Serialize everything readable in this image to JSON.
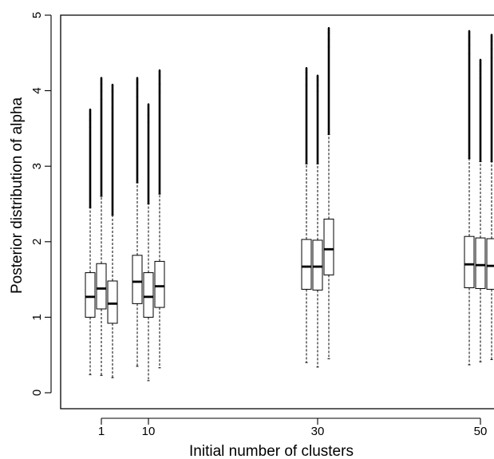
{
  "chart_data": {
    "type": "boxplot",
    "title": "",
    "xlabel": "Initial number of clusters",
    "ylabel": "Posterior distribution of alpha",
    "ylim": [
      0,
      5
    ],
    "yticks": [
      0,
      1,
      2,
      3,
      4,
      5
    ],
    "xticks": [
      1,
      10,
      30,
      50
    ],
    "groups": [
      {
        "x": 1,
        "boxes": [
          {
            "whisker_low": 0.24,
            "q1": 1.0,
            "median": 1.27,
            "q3": 1.59,
            "whisker_high": 2.45,
            "outlier_max": 3.75
          },
          {
            "whisker_low": 0.23,
            "q1": 1.11,
            "median": 1.38,
            "q3": 1.71,
            "whisker_high": 2.6,
            "outlier_max": 4.17
          },
          {
            "whisker_low": 0.2,
            "q1": 0.92,
            "median": 1.18,
            "q3": 1.48,
            "whisker_high": 2.35,
            "outlier_max": 4.08
          }
        ]
      },
      {
        "x": 10,
        "boxes": [
          {
            "whisker_low": 0.35,
            "q1": 1.18,
            "median": 1.47,
            "q3": 1.82,
            "whisker_high": 2.78,
            "outlier_max": 4.17
          },
          {
            "whisker_low": 0.16,
            "q1": 1.0,
            "median": 1.27,
            "q3": 1.59,
            "whisker_high": 2.5,
            "outlier_max": 3.82
          },
          {
            "whisker_low": 0.33,
            "q1": 1.13,
            "median": 1.41,
            "q3": 1.74,
            "whisker_high": 2.63,
            "outlier_max": 4.27
          }
        ]
      },
      {
        "x": 30,
        "boxes": [
          {
            "whisker_low": 0.4,
            "q1": 1.37,
            "median": 1.67,
            "q3": 2.03,
            "whisker_high": 3.03,
            "outlier_max": 4.3
          },
          {
            "whisker_low": 0.34,
            "q1": 1.36,
            "median": 1.67,
            "q3": 2.02,
            "whisker_high": 3.03,
            "outlier_max": 4.2
          },
          {
            "whisker_low": 0.45,
            "q1": 1.56,
            "median": 1.9,
            "q3": 2.3,
            "whisker_high": 3.42,
            "outlier_max": 4.83
          }
        ]
      },
      {
        "x": 50,
        "boxes": [
          {
            "whisker_low": 0.37,
            "q1": 1.39,
            "median": 1.7,
            "q3": 2.07,
            "whisker_high": 3.1,
            "outlier_max": 4.79
          },
          {
            "whisker_low": 0.41,
            "q1": 1.38,
            "median": 1.69,
            "q3": 2.05,
            "whisker_high": 3.06,
            "outlier_max": 4.41
          },
          {
            "whisker_low": 0.44,
            "q1": 1.37,
            "median": 1.68,
            "q3": 2.04,
            "whisker_high": 3.06,
            "outlier_max": 4.74
          }
        ]
      }
    ],
    "grid": false,
    "legend": "none"
  }
}
